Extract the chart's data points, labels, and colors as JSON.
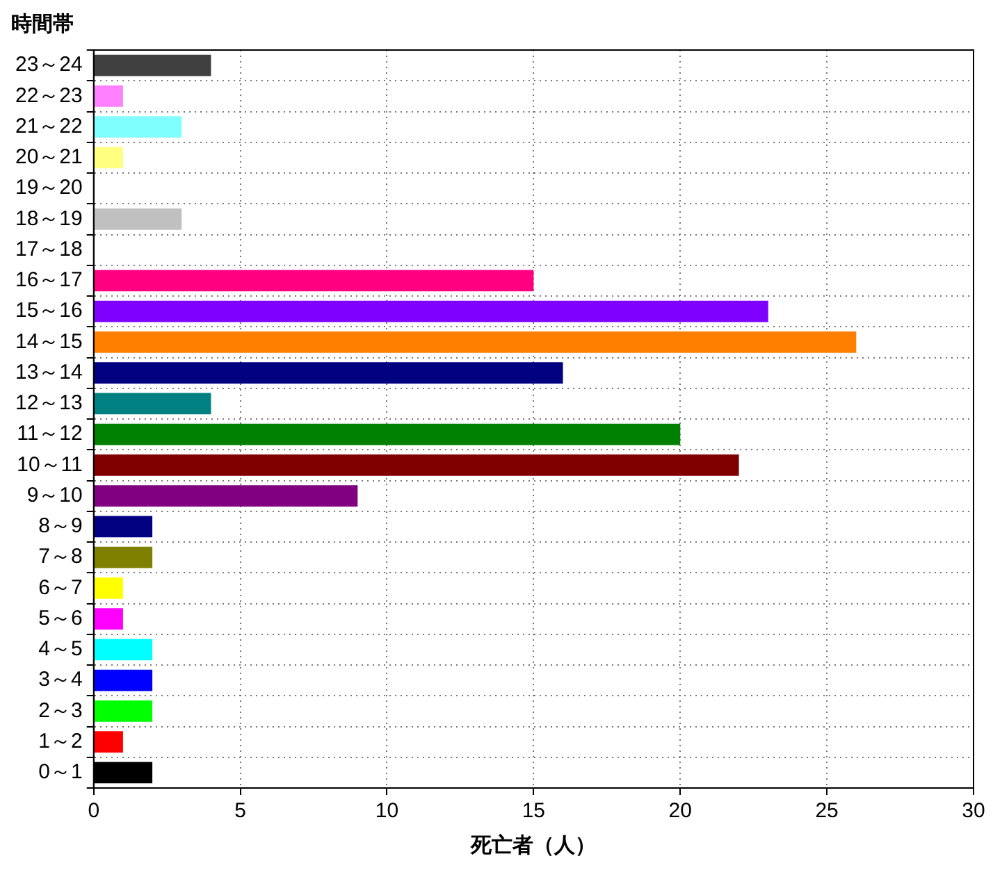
{
  "chart_data": {
    "type": "bar",
    "orientation": "horizontal",
    "ylabel": "時間帯",
    "xlabel": "死亡者（人）",
    "categories": [
      "23～24",
      "22～23",
      "21～22",
      "20～21",
      "19～20",
      "18～19",
      "17～18",
      "16～17",
      "15～16",
      "14～15",
      "13～14",
      "12～13",
      "11～12",
      "10～11",
      "9～10",
      "8～9",
      "7～8",
      "6～7",
      "5～6",
      "4～5",
      "3～4",
      "2～3",
      "1～2",
      "0～1"
    ],
    "values": [
      4,
      1,
      3,
      1,
      0,
      3,
      0,
      15,
      23,
      26,
      16,
      4,
      20,
      22,
      9,
      2,
      2,
      1,
      1,
      2,
      2,
      2,
      1,
      2
    ],
    "colors": [
      "#404040",
      "#ff80ff",
      "#80ffff",
      "#ffff80",
      "#808080",
      "#c0c0c0",
      "#808080",
      "#ff0080",
      "#8000ff",
      "#ff8000",
      "#000080",
      "#008080",
      "#008000",
      "#800000",
      "#800080",
      "#000080",
      "#808000",
      "#ffff00",
      "#ff00ff",
      "#00ffff",
      "#0000ff",
      "#00ff00",
      "#ff0000",
      "#000000"
    ],
    "xlim": [
      0,
      30
    ],
    "xticks": [
      0,
      5,
      10,
      15,
      20,
      25,
      30
    ],
    "grid": true,
    "line_style": "dotted",
    "legend": false
  }
}
